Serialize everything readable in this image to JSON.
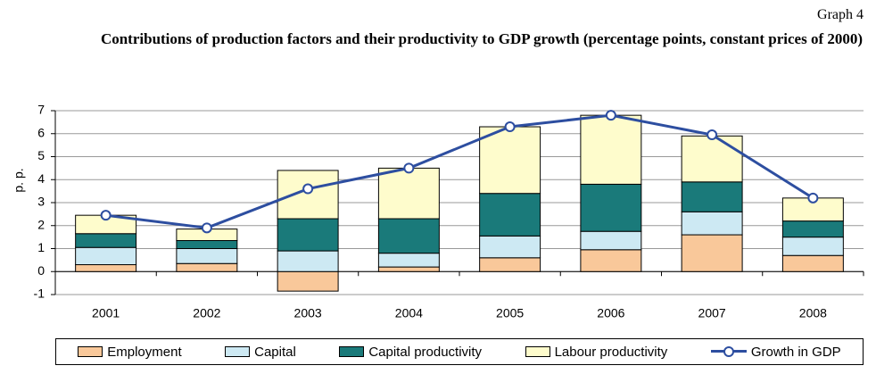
{
  "label": "Graph 4",
  "chart_data": {
    "type": "bar",
    "stacked": true,
    "title": "Contributions of production factors and their productivity to GDP growth (percentage points, constant prices of 2000)",
    "ylabel": "p. p.",
    "categories": [
      "2001",
      "2002",
      "2003",
      "2004",
      "2005",
      "2006",
      "2007",
      "2008"
    ],
    "series": [
      {
        "name": "Employment",
        "color": "#f9c89a",
        "values": [
          0.3,
          0.35,
          -0.85,
          0.2,
          0.6,
          0.95,
          1.6,
          0.7
        ]
      },
      {
        "name": "Capital",
        "color": "#cde9f3",
        "values": [
          0.75,
          0.65,
          0.9,
          0.6,
          0.95,
          0.8,
          1.0,
          0.8
        ]
      },
      {
        "name": "Capital productivity",
        "color": "#1a7a7a",
        "values": [
          0.6,
          0.35,
          1.4,
          1.5,
          1.85,
          2.05,
          1.3,
          0.7
        ]
      },
      {
        "name": "Labour productivity",
        "color": "#fefccc",
        "values": [
          0.8,
          0.5,
          2.1,
          2.2,
          2.9,
          3.0,
          2.0,
          1.0
        ]
      },
      {
        "name": "Growth in GDP",
        "color": "#2d4ea0",
        "type": "line",
        "values": [
          2.45,
          1.9,
          3.6,
          4.5,
          6.3,
          6.8,
          5.95,
          3.2
        ]
      }
    ],
    "ylim": [
      -1,
      7
    ],
    "yticks": [
      -1,
      0,
      1,
      2,
      3,
      4,
      5,
      6,
      7
    ],
    "grid": true,
    "legend": "bottom"
  }
}
